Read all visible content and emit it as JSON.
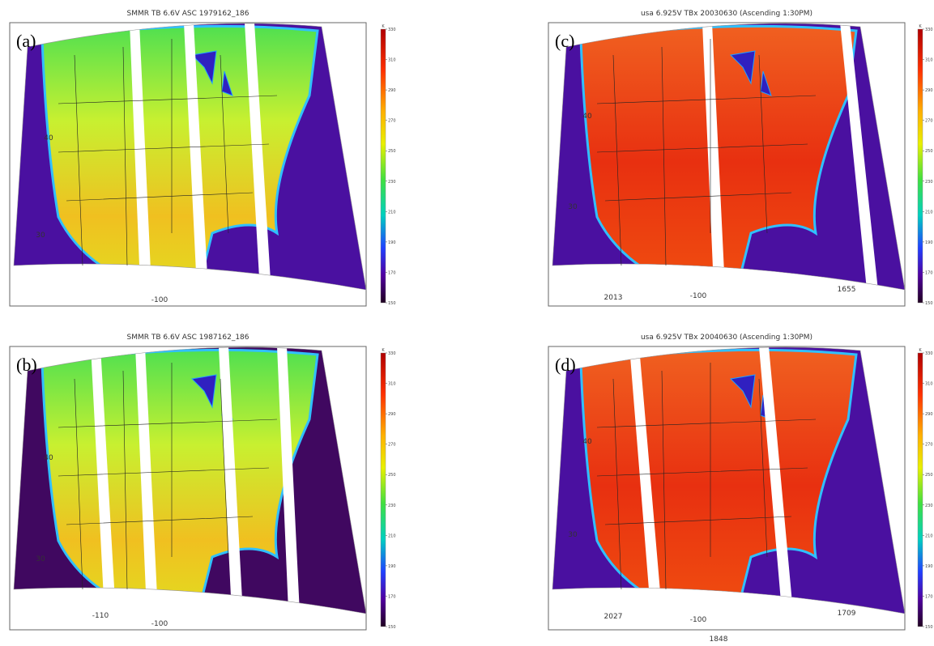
{
  "panels": [
    {
      "label": "(a)",
      "title": "SMMR TB 6.6V ASC 1979162_186",
      "colorbar_unit": "K",
      "colorbar_ticks": [
        330,
        310,
        290,
        270,
        250,
        230,
        210,
        190,
        170,
        150
      ],
      "annotations": [
        "40",
        "30",
        "-100"
      ]
    },
    {
      "label": "(b)",
      "title": "SMMR TB 6.6V ASC 1987162_186",
      "colorbar_unit": "K",
      "colorbar_ticks": [
        330,
        310,
        290,
        270,
        250,
        230,
        210,
        190,
        170,
        150
      ],
      "annotations": [
        "40",
        "30",
        "-110",
        "-100"
      ]
    },
    {
      "label": "(c)",
      "title": "usa  6.925V TBx 20030630 (Ascending 1:30PM)",
      "colorbar_unit": "K",
      "colorbar_ticks": [
        330,
        310,
        290,
        270,
        250,
        230,
        210,
        190,
        170,
        150
      ],
      "annotations": [
        "40",
        "30",
        "-100",
        "2013",
        "1655"
      ]
    },
    {
      "label": "(d)",
      "title": "usa  6.925V TBx 20040630 (Ascending 1:30PM)",
      "colorbar_unit": "K",
      "colorbar_ticks": [
        330,
        310,
        290,
        270,
        250,
        230,
        210,
        190,
        170,
        150
      ],
      "annotations": [
        "40",
        "30",
        "-100",
        "2027",
        "1709"
      ]
    }
  ],
  "footer": "1848"
}
